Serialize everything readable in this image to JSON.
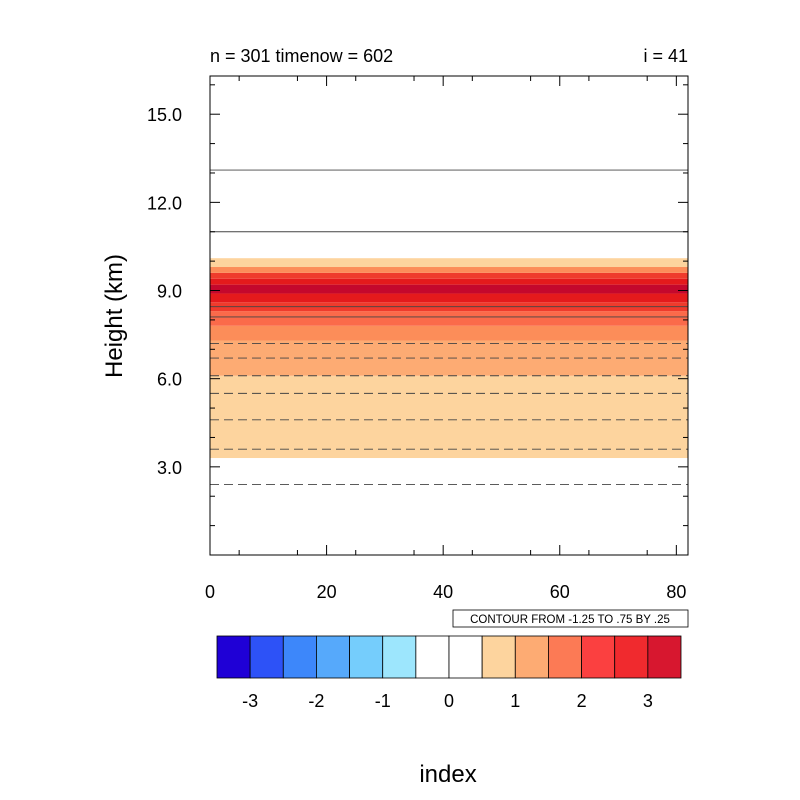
{
  "chart_data": {
    "type": "heatmap",
    "title_left": "n = 301 timenow = 602",
    "title_right": "i = 41",
    "ylabel": "Height (km)",
    "xlabel": "index",
    "xlim": [
      0,
      82
    ],
    "ylim": [
      0,
      16.3
    ],
    "x_ticks": [
      0,
      20,
      40,
      60,
      80
    ],
    "x_tick_labels": [
      "0",
      "20",
      "40",
      "60",
      "80"
    ],
    "y_ticks": [
      3,
      6,
      9,
      12,
      15
    ],
    "y_tick_labels": [
      "3.0",
      "6.0",
      "9.0",
      "12.0",
      "15.0"
    ],
    "contour_info": "CONTOUR FROM -1.25 TO .75 BY .25",
    "fill_bands": [
      {
        "y0": 3.3,
        "y1": 6.1,
        "color": "#fdd49e"
      },
      {
        "y0": 6.1,
        "y1": 7.3,
        "color": "#fdab73"
      },
      {
        "y0": 7.3,
        "y1": 7.8,
        "color": "#fc8d59"
      },
      {
        "y0": 7.8,
        "y1": 8.3,
        "color": "#fb6a4a"
      },
      {
        "y0": 8.3,
        "y1": 8.6,
        "color": "#ef3b2c"
      },
      {
        "y0": 8.6,
        "y1": 8.9,
        "color": "#e41a1c"
      },
      {
        "y0": 8.9,
        "y1": 9.2,
        "color": "#c4082d"
      },
      {
        "y0": 9.2,
        "y1": 9.4,
        "color": "#e41a1c"
      },
      {
        "y0": 9.4,
        "y1": 9.6,
        "color": "#ef3b2c"
      },
      {
        "y0": 9.6,
        "y1": 9.8,
        "color": "#fc8d59"
      },
      {
        "y0": 9.8,
        "y1": 10.1,
        "color": "#fdd49e"
      }
    ],
    "contour_lines": [
      {
        "y": 13.1,
        "dashed": false
      },
      {
        "y": 11.0,
        "dashed": false
      },
      {
        "y": 8.45,
        "dashed": false
      },
      {
        "y": 8.1,
        "dashed": false
      },
      {
        "y": 7.2,
        "dashed": true
      },
      {
        "y": 6.7,
        "dashed": true
      },
      {
        "y": 6.1,
        "dashed": true
      },
      {
        "y": 5.5,
        "dashed": true
      },
      {
        "y": 4.6,
        "dashed": true
      },
      {
        "y": 3.6,
        "dashed": true
      },
      {
        "y": 2.4,
        "dashed": true
      }
    ],
    "colorbar": {
      "colors": [
        "#1f00d6",
        "#2d52f7",
        "#3d87fa",
        "#56a9fb",
        "#75cdfc",
        "#9de6fd",
        "#ffffff",
        "#ffffff",
        "#fdd49e",
        "#fdab73",
        "#fc7a55",
        "#fb4040",
        "#f02a2e",
        "#d7172f"
      ],
      "labels": [
        "-3",
        "-2",
        "-1",
        "0",
        "1",
        "2",
        "3"
      ]
    }
  }
}
